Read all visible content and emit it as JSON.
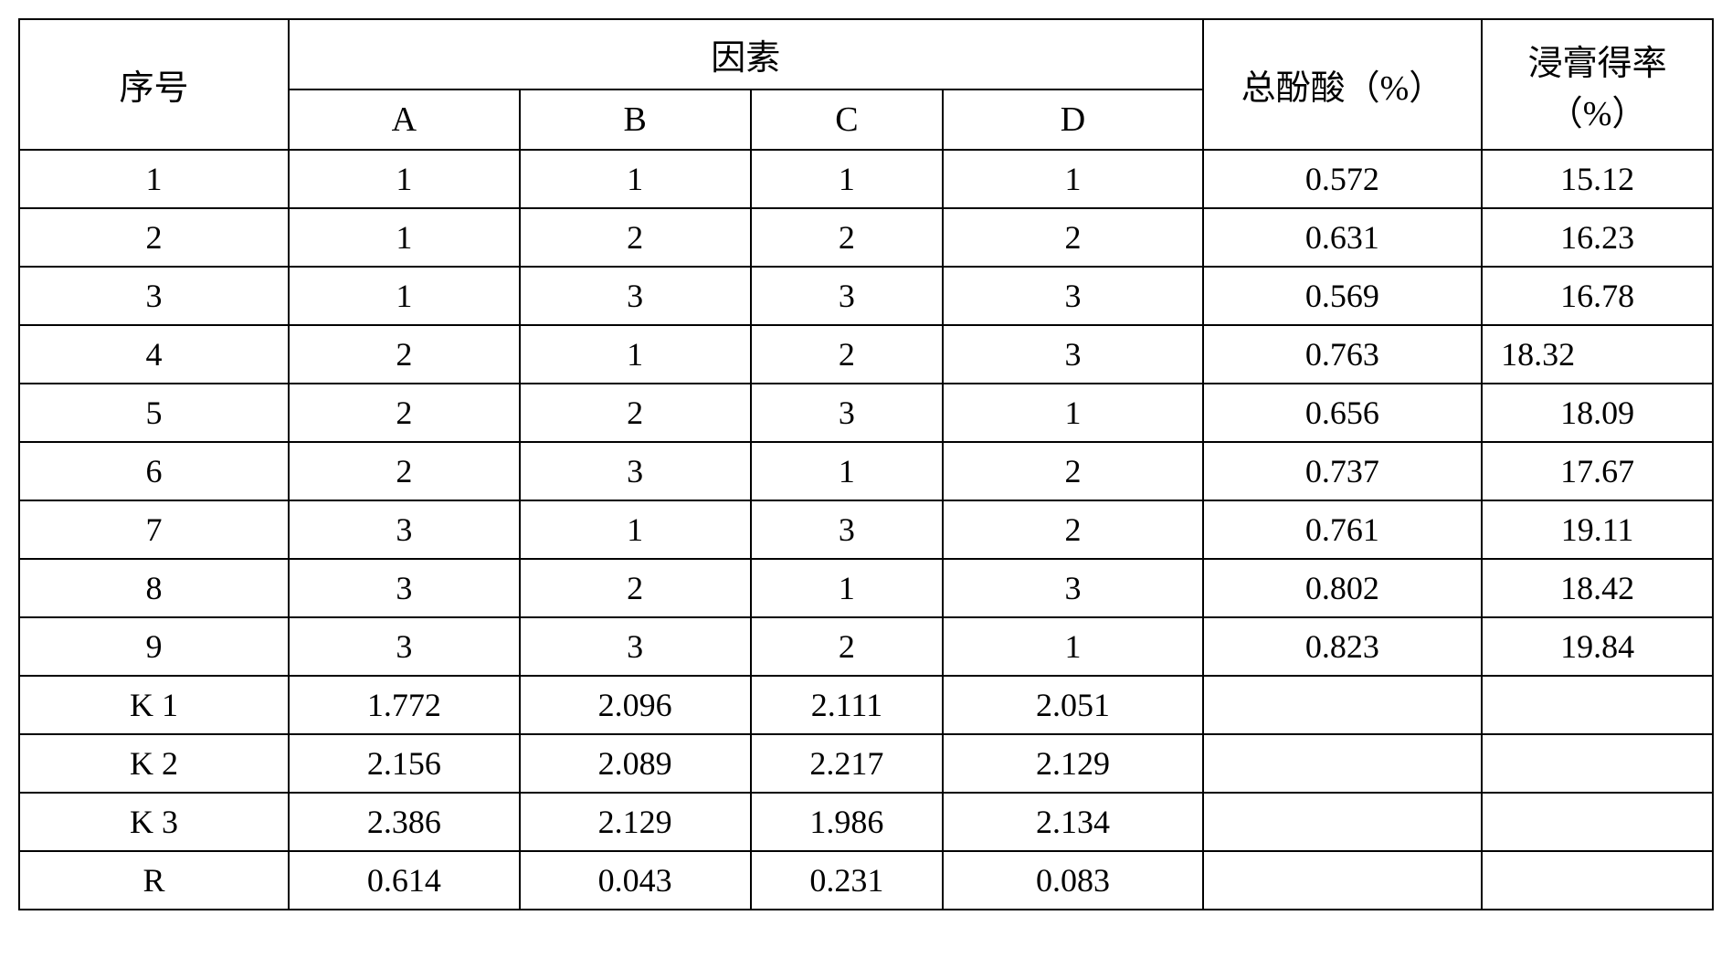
{
  "table": {
    "headers": {
      "seq": "序号",
      "factor": "因素",
      "colA": "A",
      "colB": "B",
      "colC": "C",
      "colD": "D",
      "acid": "总酚酸（%）",
      "yield": "浸膏得率（%）"
    },
    "rows": [
      {
        "seq": "1",
        "a": "1",
        "b": "1",
        "c": "1",
        "d": "1",
        "acid": "0.572",
        "yield": "15.12"
      },
      {
        "seq": "2",
        "a": "1",
        "b": "2",
        "c": "2",
        "d": "2",
        "acid": "0.631",
        "yield": "16.23"
      },
      {
        "seq": "3",
        "a": "1",
        "b": "3",
        "c": "3",
        "d": "3",
        "acid": "0.569",
        "yield": "16.78"
      },
      {
        "seq": "4",
        "a": "2",
        "b": "1",
        "c": "2",
        "d": "3",
        "acid": "0.763",
        "yield": "18.32"
      },
      {
        "seq": "5",
        "a": "2",
        "b": "2",
        "c": "3",
        "d": "1",
        "acid": "0.656",
        "yield": "18.09"
      },
      {
        "seq": "6",
        "a": "2",
        "b": "3",
        "c": "1",
        "d": "2",
        "acid": "0.737",
        "yield": "17.67"
      },
      {
        "seq": "7",
        "a": "3",
        "b": "1",
        "c": "3",
        "d": "2",
        "acid": "0.761",
        "yield": "19.11"
      },
      {
        "seq": "8",
        "a": "3",
        "b": "2",
        "c": "1",
        "d": "3",
        "acid": "0.802",
        "yield": "18.42"
      },
      {
        "seq": "9",
        "a": "3",
        "b": "3",
        "c": "2",
        "d": "1",
        "acid": "0.823",
        "yield": "19.84"
      },
      {
        "seq": "K 1",
        "a": "1.772",
        "b": "2.096",
        "c": "2.111",
        "d": "2.051",
        "acid": "",
        "yield": ""
      },
      {
        "seq": "K 2",
        "a": "2.156",
        "b": "2.089",
        "c": "2.217",
        "d": "2.129",
        "acid": "",
        "yield": ""
      },
      {
        "seq": "K 3",
        "a": "2.386",
        "b": "2.129",
        "c": "1.986",
        "d": "2.134",
        "acid": "",
        "yield": ""
      },
      {
        "seq": "R",
        "a": "0.614",
        "b": "0.043",
        "c": "0.231",
        "d": "0.083",
        "acid": "",
        "yield": ""
      }
    ],
    "row4_yield_left_align": true,
    "colors": {
      "border": "#000000",
      "background": "#ffffff",
      "text": "#000000"
    },
    "font_size": 36,
    "header_font_size": 38
  }
}
